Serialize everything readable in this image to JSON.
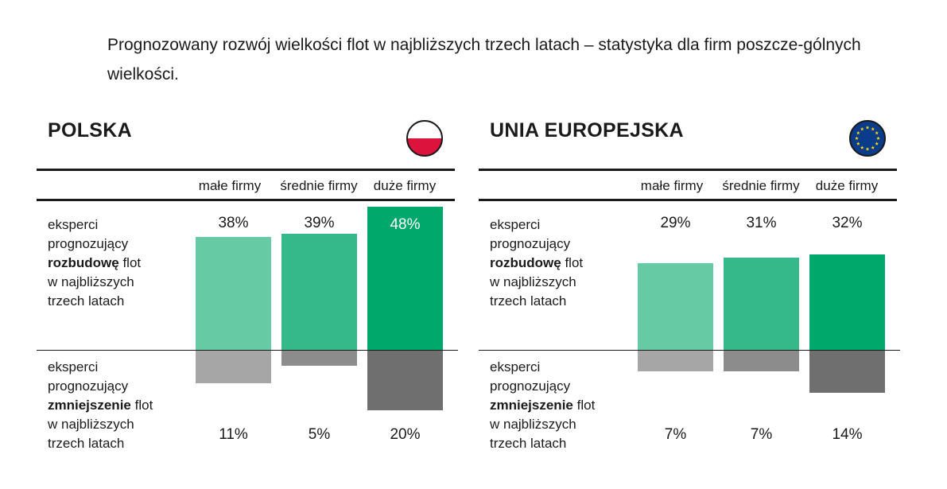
{
  "title": "Prognozowany rozwój wielkości flot w najbliższych trzech latach – statystyka dla firm poszcze-gólnych wielkości.",
  "colors": {
    "small_up": "#66caa4",
    "medium_up": "#35b88a",
    "large_up": "#00a86b",
    "small_down": "#a6a6a6",
    "medium_down": "#8c8c8c",
    "large_down": "#6f6f70"
  },
  "row_labels": {
    "up": {
      "pre": "eksperci prognozujący",
      "bold": "rozbudowę",
      "post": "flot w najbliższych trzech latach"
    },
    "down": {
      "pre": "eksperci prognozujący",
      "bold": "zmniejszenie",
      "post": "flot w najbliższych trzech latach"
    }
  },
  "chart_data": [
    {
      "type": "bar",
      "title": "POLSKA",
      "icon": "poland-flag-icon",
      "categories": [
        "małe firmy",
        "średnie firmy",
        "duże firmy"
      ],
      "series": [
        {
          "name": "eksperci prognozujący rozbudowę flot w najbliższych trzech latach",
          "values": [
            38,
            39,
            48
          ],
          "labels": [
            "38%",
            "39%",
            "48%"
          ]
        },
        {
          "name": "eksperci prognozujący zmniejszenie flot w najbliższych trzech latach",
          "values": [
            11,
            5,
            20
          ],
          "labels": [
            "11%",
            "5%",
            "20%"
          ]
        }
      ],
      "ylim": [
        0,
        50
      ]
    },
    {
      "type": "bar",
      "title": "UNIA EUROPEJSKA",
      "icon": "eu-flag-icon",
      "categories": [
        "małe firmy",
        "średnie firmy",
        "duże firmy"
      ],
      "series": [
        {
          "name": "eksperci prognozujący rozbudowę flot w najbliższych trzech latach",
          "values": [
            29,
            31,
            32
          ],
          "labels": [
            "29%",
            "31%",
            "32%"
          ]
        },
        {
          "name": "eksperci prognozujący zmniejszenie flot w najbliższych trzech latach",
          "values": [
            7,
            7,
            14
          ],
          "labels": [
            "7%",
            "7%",
            "14%"
          ]
        }
      ],
      "ylim": [
        0,
        50
      ]
    }
  ]
}
